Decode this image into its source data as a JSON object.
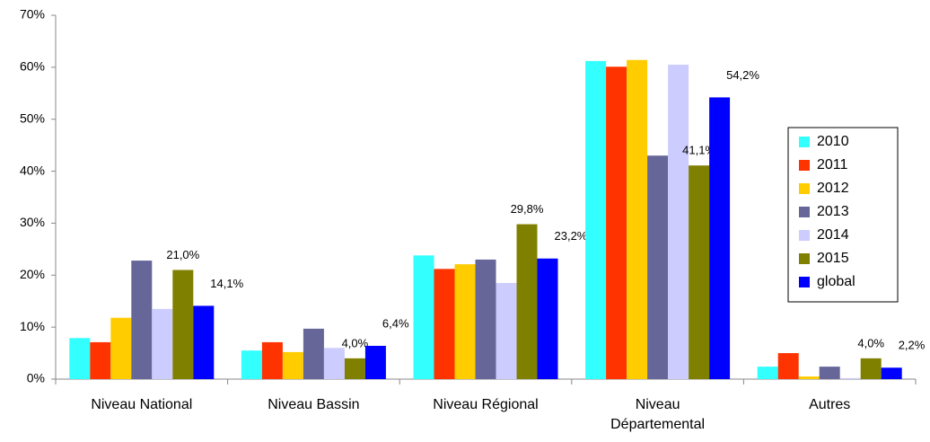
{
  "chart_data": {
    "type": "bar",
    "categories": [
      "Niveau National",
      "Niveau Bassin",
      "Niveau Régional",
      "Niveau Départemental",
      "Autres"
    ],
    "series": [
      {
        "name": "2010",
        "color": "#33ffff",
        "values": [
          7.9,
          5.5,
          23.8,
          61.2,
          2.4
        ]
      },
      {
        "name": "2011",
        "color": "#ff3300",
        "values": [
          7.1,
          7.1,
          21.2,
          60.1,
          5.0
        ]
      },
      {
        "name": "2012",
        "color": "#ffcc00",
        "values": [
          11.8,
          5.2,
          22.1,
          61.4,
          0.5
        ]
      },
      {
        "name": "2013",
        "color": "#666699",
        "values": [
          22.8,
          9.7,
          23.0,
          43.0,
          2.4
        ]
      },
      {
        "name": "2014",
        "color": "#ccccff",
        "values": [
          13.5,
          6.0,
          18.5,
          60.5,
          0.2
        ]
      },
      {
        "name": "2015",
        "color": "#808000",
        "values": [
          21.0,
          4.0,
          29.8,
          41.1,
          4.0
        ],
        "value_labels": [
          "21,0%",
          "4,0%",
          "29,8%",
          "41,1%",
          "4,0%"
        ]
      },
      {
        "name": "global",
        "color": "#0000ff",
        "values": [
          14.1,
          6.4,
          23.2,
          54.2,
          2.2
        ],
        "value_labels": [
          "14,1%",
          "6,4%",
          "23,2%",
          "54,2%",
          "2,2%"
        ]
      }
    ],
    "ylim": [
      0,
      70
    ],
    "yticks": [
      {
        "value": 0,
        "label": "0%"
      },
      {
        "value": 10,
        "label": "10%"
      },
      {
        "value": 20,
        "label": "20%"
      },
      {
        "value": 30,
        "label": "30%"
      },
      {
        "value": 40,
        "label": "40%"
      },
      {
        "value": 50,
        "label": "50%"
      },
      {
        "value": 60,
        "label": "60%"
      },
      {
        "value": 70,
        "label": "70%"
      }
    ],
    "legend": "right"
  }
}
